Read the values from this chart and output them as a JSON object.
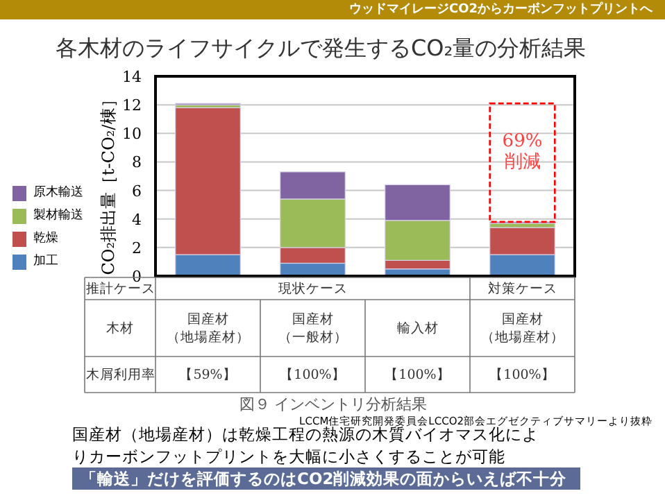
{
  "chart_data": {
    "type": "bar",
    "stacked": true,
    "title": "各木材のライフサイクルで発生するCO₂量の分析結果",
    "ylabel": "CO₂排出量［t-CO₂/棟］",
    "categories": [
      "国産材（地場産材）",
      "国産材（一般材）",
      "輸入材",
      "国産材（地場産材）"
    ],
    "series": [
      {
        "name": "加工",
        "color": "#4f81bd",
        "values": [
          1.5,
          0.9,
          0.5,
          1.5
        ]
      },
      {
        "name": "乾燥",
        "color": "#c0504d",
        "values": [
          10.3,
          1.1,
          0.6,
          1.9
        ]
      },
      {
        "name": "製材輸送",
        "color": "#9bbb59",
        "values": [
          0.2,
          3.4,
          2.8,
          0.3
        ]
      },
      {
        "name": "原木輸送",
        "color": "#8064a2",
        "values": [
          0.1,
          1.9,
          2.5,
          0.1
        ]
      }
    ],
    "ylim": [
      0,
      14
    ],
    "yticks": [
      0,
      2,
      4,
      6,
      8,
      10,
      12,
      14
    ],
    "grid": "y",
    "legend": "left",
    "annotations": [
      "推計ケース",
      "現状ケース",
      "対策ケース",
      "木材",
      "木屑利用率",
      "【59%】",
      "【100%】",
      "【100%】",
      "【100%】",
      "図９ インベントリ分析結果",
      "LCCM住宅研究開発委員会LCCO2部会エグゼクティブサマリーより抜粋",
      "国産材（地場産材）は乾燥工程の熱源の木質バイオマス化によりカーボンフットプリントを大幅に小さくすることが可能",
      "「輸送」だけを評価するのはCO2削減効果の面からいえば不十分",
      "ウッドマイレージCO2からカーボンフットプリントへ",
      "69%\n削減"
    ]
  }
}
